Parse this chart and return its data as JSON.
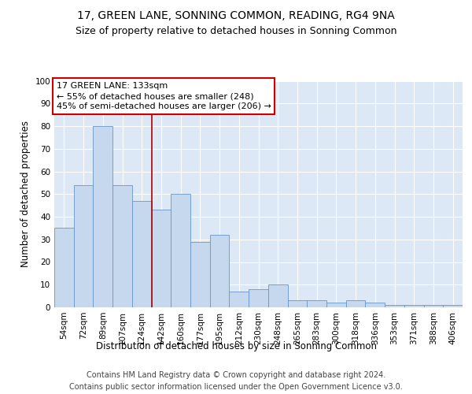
{
  "title": "17, GREEN LANE, SONNING COMMON, READING, RG4 9NA",
  "subtitle": "Size of property relative to detached houses in Sonning Common",
  "xlabel": "Distribution of detached houses by size in Sonning Common",
  "ylabel": "Number of detached properties",
  "categories": [
    "54sqm",
    "72sqm",
    "89sqm",
    "107sqm",
    "124sqm",
    "142sqm",
    "160sqm",
    "177sqm",
    "195sqm",
    "212sqm",
    "230sqm",
    "248sqm",
    "265sqm",
    "283sqm",
    "300sqm",
    "318sqm",
    "336sqm",
    "353sqm",
    "371sqm",
    "388sqm",
    "406sqm"
  ],
  "values": [
    35,
    54,
    80,
    54,
    47,
    43,
    50,
    29,
    32,
    7,
    8,
    10,
    3,
    3,
    2,
    3,
    2,
    1,
    1,
    1,
    1
  ],
  "bar_color": "#c5d8ee",
  "bar_edge_color": "#6896c8",
  "bar_edge_width": 0.6,
  "red_line_x": 4.5,
  "annotation_line1": "17 GREEN LANE: 133sqm",
  "annotation_line2": "← 55% of detached houses are smaller (248)",
  "annotation_line3": "45% of semi-detached houses are larger (206) →",
  "ylim": [
    0,
    100
  ],
  "yticks": [
    0,
    10,
    20,
    30,
    40,
    50,
    60,
    70,
    80,
    90,
    100
  ],
  "plot_bg_color": "#dce8f5",
  "grid_color": "#ffffff",
  "title_fontsize": 10,
  "subtitle_fontsize": 9,
  "axis_label_fontsize": 8.5,
  "tick_fontsize": 7.5,
  "annotation_fontsize": 8,
  "footer_fontsize": 7,
  "footer1": "Contains HM Land Registry data © Crown copyright and database right 2024.",
  "footer2": "Contains public sector information licensed under the Open Government Licence v3.0."
}
